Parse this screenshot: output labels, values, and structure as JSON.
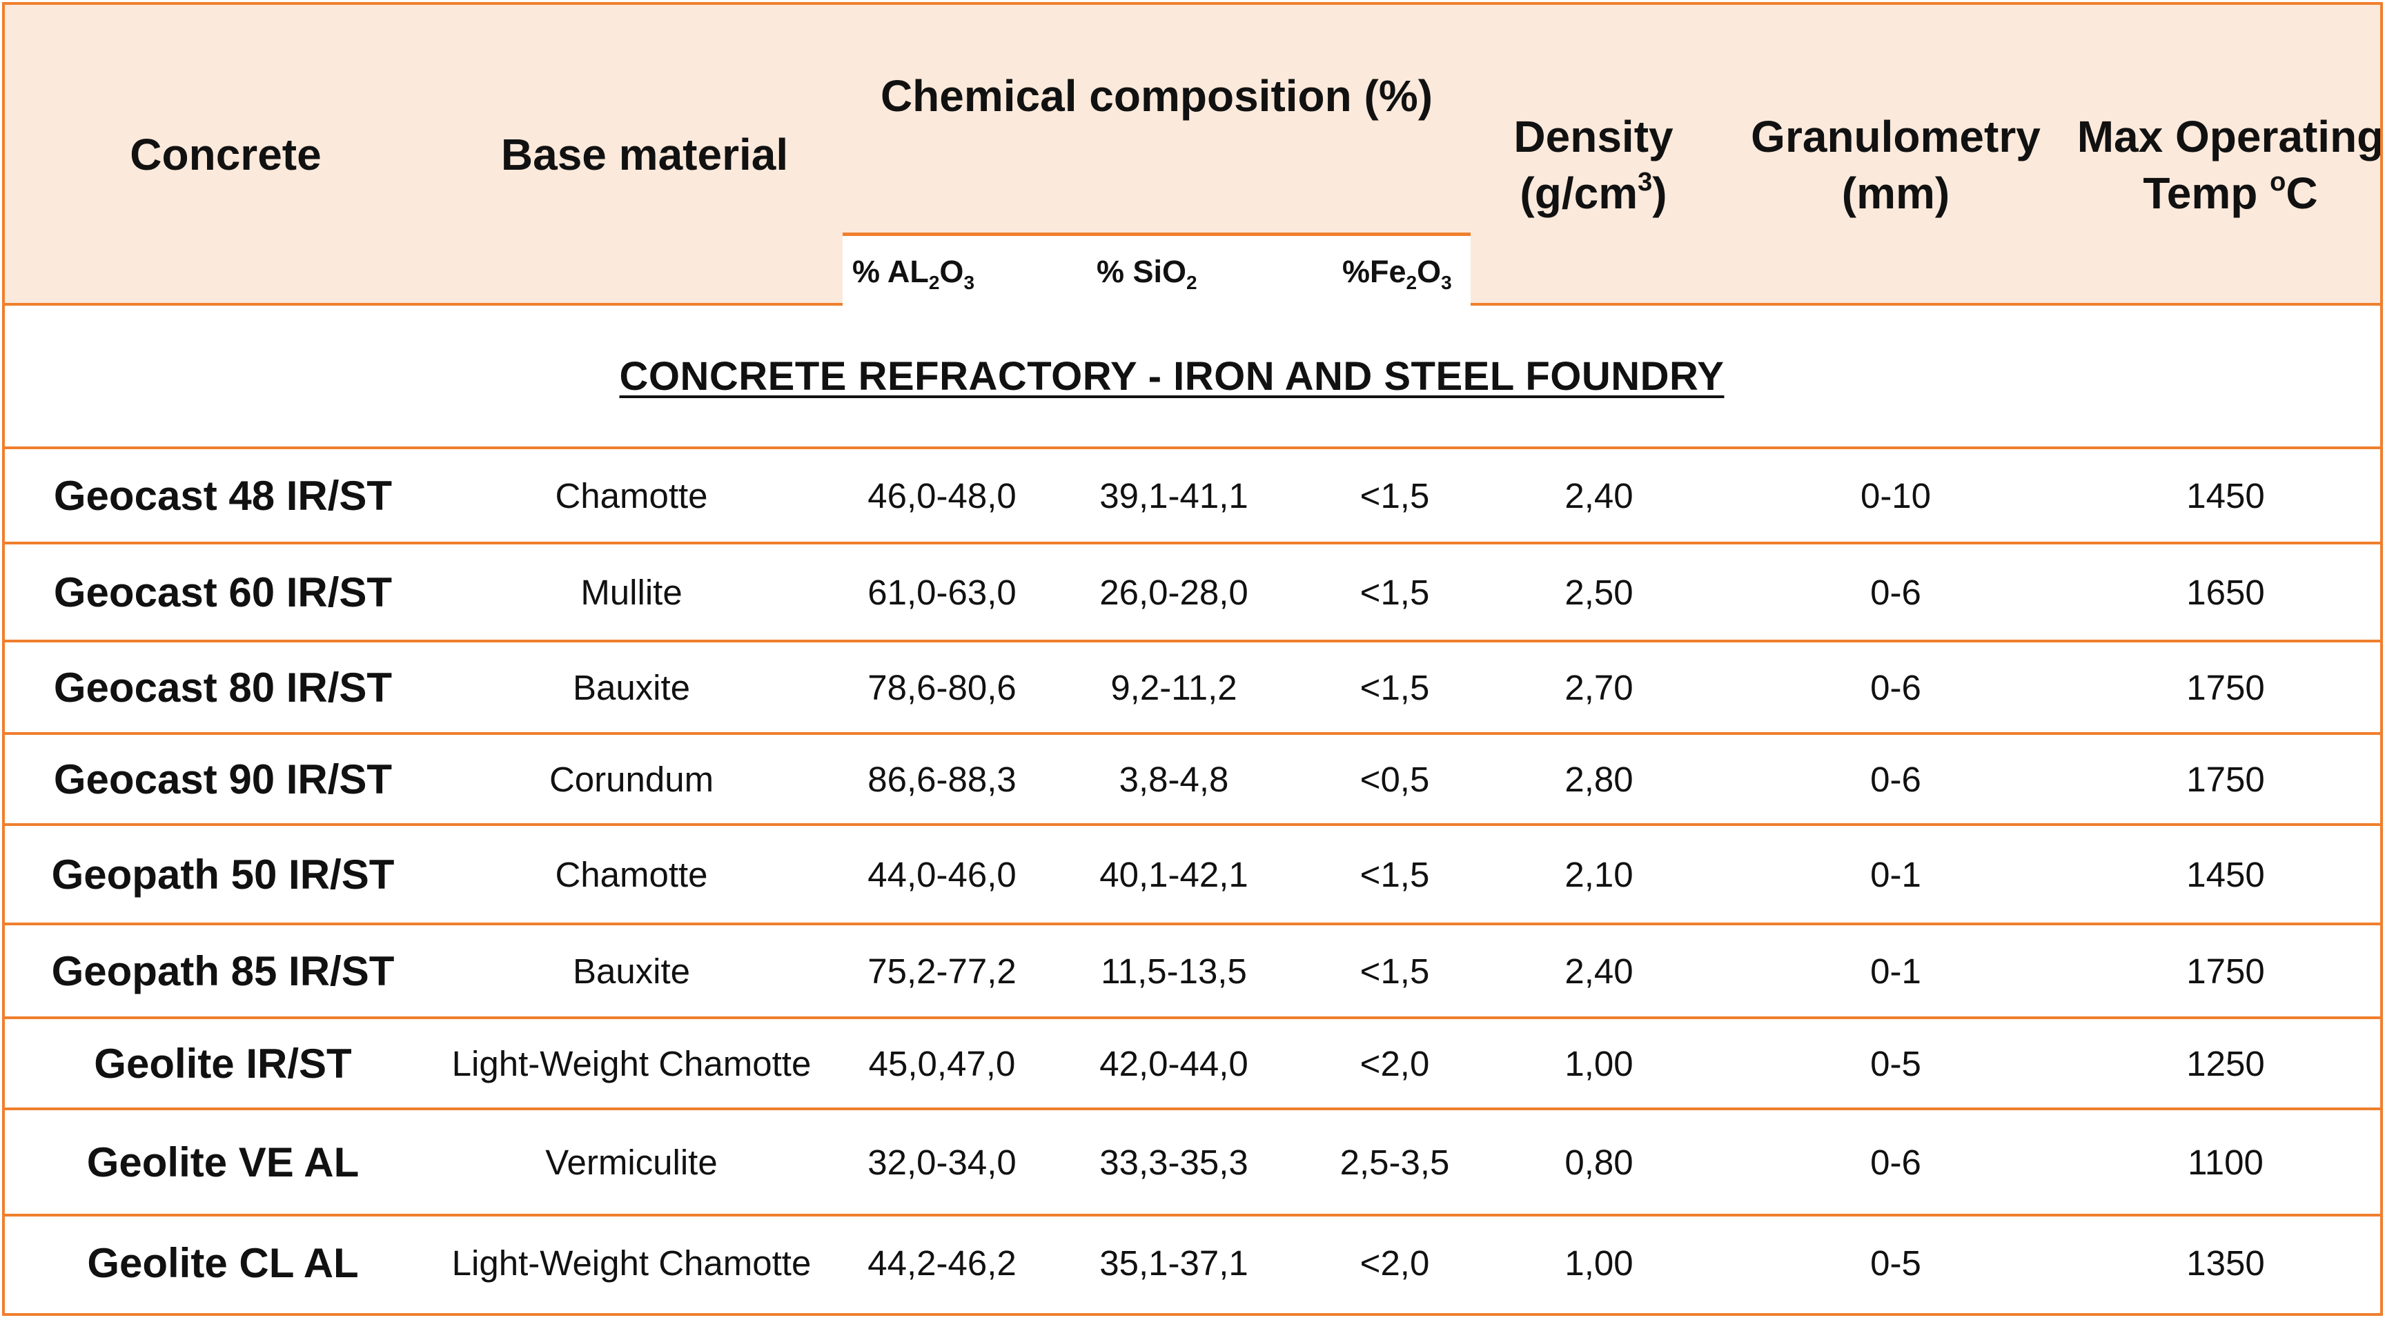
{
  "header": {
    "concrete": "Concrete",
    "base_material": "Base material",
    "chemical": "Chemical composition (%)",
    "al2o3": {
      "pre": "% AL",
      "s1": "2",
      "mid": "O",
      "s2": "3"
    },
    "sio2": {
      "pre": "% SiO",
      "s1": "2"
    },
    "fe2o3": {
      "pre": "%Fe",
      "s1": "2",
      "mid": "O",
      "s2": "3"
    },
    "density": {
      "line1": "Density",
      "line2_pre": "(g/cm",
      "line2_sup": "3",
      "line2_post": ")"
    },
    "granulometry": {
      "line1": "Granulometry",
      "line2": "(mm)"
    },
    "max_temp": {
      "line1": "Max Operating",
      "line2_pre": "Temp ",
      "line2_sup": "o",
      "line2_post": "C"
    }
  },
  "section_title": "CONCRETE REFRACTORY - IRON AND STEEL FOUNDRY",
  "rows": [
    {
      "concrete": "Geocast 48 IR/ST",
      "base": "Chamotte",
      "al2o3": "46,0-48,0",
      "sio2": "39,1-41,1",
      "fe2o3": "<1,5",
      "density": "2,40",
      "granulometry": "0-10",
      "temp": "1450"
    },
    {
      "concrete": "Geocast 60 IR/ST",
      "base": "Mullite",
      "al2o3": "61,0-63,0",
      "sio2": "26,0-28,0",
      "fe2o3": "<1,5",
      "density": "2,50",
      "granulometry": "0-6",
      "temp": "1650"
    },
    {
      "concrete": "Geocast 80 IR/ST",
      "base": "Bauxite",
      "al2o3": "78,6-80,6",
      "sio2": "9,2-11,2",
      "fe2o3": "<1,5",
      "density": "2,70",
      "granulometry": "0-6",
      "temp": "1750"
    },
    {
      "concrete": "Geocast 90 IR/ST",
      "base": "Corundum",
      "al2o3": "86,6-88,3",
      "sio2": "3,8-4,8",
      "fe2o3": "<0,5",
      "density": "2,80",
      "granulometry": "0-6",
      "temp": "1750"
    },
    {
      "concrete": "Geopath 50 IR/ST",
      "base": "Chamotte",
      "al2o3": "44,0-46,0",
      "sio2": "40,1-42,1",
      "fe2o3": "<1,5",
      "density": "2,10",
      "granulometry": "0-1",
      "temp": "1450"
    },
    {
      "concrete": "Geopath 85 IR/ST",
      "base": "Bauxite",
      "al2o3": "75,2-77,2",
      "sio2": "11,5-13,5",
      "fe2o3": "<1,5",
      "density": "2,40",
      "granulometry": "0-1",
      "temp": "1750"
    },
    {
      "concrete": "Geolite IR/ST",
      "base": "Light-Weight Chamotte",
      "al2o3": "45,0,47,0",
      "sio2": "42,0-44,0",
      "fe2o3": "<2,0",
      "density": "1,00",
      "granulometry": "0-5",
      "temp": "1250"
    },
    {
      "concrete": "Geolite VE AL",
      "base": "Vermiculite",
      "al2o3": "32,0-34,0",
      "sio2": "33,3-35,3",
      "fe2o3": "2,5-3,5",
      "density": "0,80",
      "granulometry": "0-6",
      "temp": "1100"
    },
    {
      "concrete": "Geolite CL AL",
      "base": "Light-Weight Chamotte",
      "al2o3": "44,2-46,2",
      "sio2": "35,1-37,1",
      "fe2o3": "<2,0",
      "density": "1,00",
      "granulometry": "0-5",
      "temp": "1350"
    }
  ]
}
